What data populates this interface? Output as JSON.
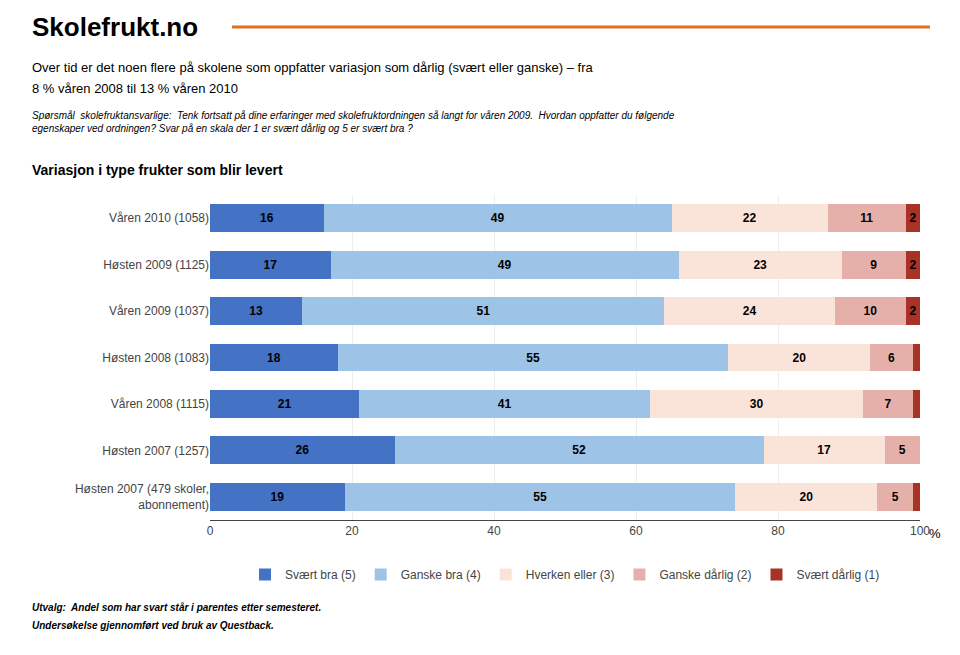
{
  "chart_data": {
    "type": "bar",
    "orientation": "horizontal",
    "stacked": true,
    "header": "Skolefrukt.no",
    "header_line_color": "#E2711D",
    "subtitle": [
      "Over tid er det noen flere på skolene som oppfatter variasjon som dårlig (svært eller ganske) – fra",
      "8 % våren 2008 til 13 % våren 2010"
    ],
    "question": "Spørsmål  skolefruktansvarlige:  Tenk fortsatt på dine erfaringer med skolefruktordningen så langt for våren 2009.  Hvordan oppfatter du følgende\negenskaper ved ordningen? Svar på en skala der 1 er svært dårlig og 5 er svært bra ?",
    "title": "Variasjon i type frukter som blir levert",
    "footer": [
      "Utvalg:  Andel som har svart står i parentes etter semesteret.",
      "Undersøkelse gjennomført ved bruk av Questback."
    ],
    "xlabel": "%",
    "categories": [
      "Våren 2010 (1058)",
      "Høsten 2009 (1125)",
      "Våren 2009 (1037)",
      "Høsten 2008 (1083)",
      "Våren 2008 (1115)",
      "Høsten 2007 (1257)",
      "Høsten 2007 (479 skoler,\nabonnement)"
    ],
    "series": [
      {
        "name": "Svært bra (5)",
        "color": "#4472C4",
        "values": [
          16,
          17,
          13,
          18,
          21,
          26,
          19
        ]
      },
      {
        "name": "Ganske bra (4)",
        "color": "#9DC3E6",
        "values": [
          49,
          49,
          51,
          55,
          41,
          52,
          55
        ]
      },
      {
        "name": "Hverken eller (3)",
        "color": "#FAE4D9",
        "values": [
          22,
          23,
          24,
          20,
          30,
          17,
          20
        ]
      },
      {
        "name": "Ganske dårlig (2)",
        "color": "#E6B0AA",
        "values": [
          11,
          9,
          10,
          6,
          7,
          5,
          5
        ]
      },
      {
        "name": "Svært dårlig (1)",
        "color": "#A93226",
        "values": [
          2,
          2,
          2,
          1,
          1,
          0,
          1
        ],
        "value_labels": [
          "2",
          "2",
          "2",
          null,
          null,
          null,
          null
        ]
      }
    ],
    "xlim": [
      0,
      100
    ],
    "xticks": [
      0,
      20,
      40,
      60,
      80,
      100
    ],
    "grid": true,
    "data_labels": true,
    "legend": "bottom"
  }
}
